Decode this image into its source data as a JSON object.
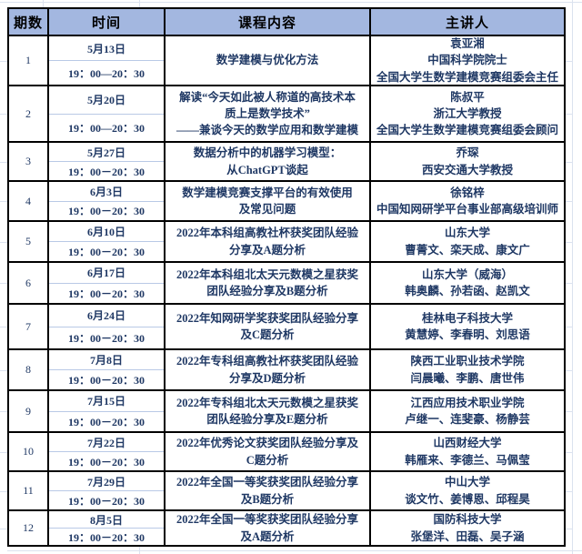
{
  "colors": {
    "header_bg": "#a3b7e0",
    "table_border": "#000000",
    "body_text": "#1f3864",
    "separator_line": "#b9c9e6",
    "sheet_gridline": "#dbe2ef"
  },
  "header": {
    "session": "期数",
    "time": "时间",
    "content": "课程内容",
    "speaker": "主讲人"
  },
  "rows": [
    {
      "num": "1",
      "date": "5月13日",
      "time": "19：00—20：30",
      "content": "数学建模与优化方法",
      "speaker": "袁亚湘\n中国科学院院士\n全国大学生数学建模竞赛组委会主任"
    },
    {
      "num": "2",
      "date": "5月20日",
      "time": "19：00—20：30",
      "content": "解读“今天如此被人称道的高技术本\n质上是数学技术”\n——兼谈今天的数学应用和数学建模",
      "speaker": "陈叔平\n浙江大学教授\n全国大学生数学建模竞赛组委会顾问"
    },
    {
      "num": "3",
      "date": "5月27日",
      "time": "19：00－20：30",
      "content": "数据分析中的机器学习模型：\n从ChatGPT谈起",
      "speaker": "乔琛\n西安交通大学教授"
    },
    {
      "num": "4",
      "date": "6月3日",
      "time": "19：00－20：30",
      "content": "数学建模竞赛支撑平台的有效使用\n及常见问题",
      "speaker": "徐铭梓\n中国知网研学平台事业部高级培训师"
    },
    {
      "num": "5",
      "date": "6月10日",
      "time": "19：00－20：30",
      "content": "2022年本科组高教社杯获奖团队经验\n分享及A题分析",
      "speaker": "山东大学\n曹菁文、栾天成、康文广"
    },
    {
      "num": "6",
      "date": "6月17日",
      "time": "19：00－20：30",
      "content": "2022年本科组北太天元数模之星获奖\n团队经验分享及B题分析",
      "speaker": "山东大学（威海）\n韩奥麟、孙若函、赵凯文"
    },
    {
      "num": "7",
      "date": "6月24日",
      "time": "19：00－20：30",
      "content": "2022年知网研学奖获奖团队经验分享\n及C题分析",
      "speaker": "桂林电子科技大学\n黄慧婷、李春明、刘思语"
    },
    {
      "num": "8",
      "date": "7月8日",
      "time": "19：00－20：30",
      "content": "2022年专科组高教社杯获奖团队经验\n分享及D题分析",
      "speaker": "陕西工业职业技术学院\n闫晨曦、李鹏、唐世伟"
    },
    {
      "num": "9",
      "date": "7月15日",
      "time": "19：00－20：30",
      "content": "2022年专科组北太天元数模之星获奖\n团队经验分享及E题分析",
      "speaker": "江西应用技术职业学院\n卢继一、连斐豪、杨静芸"
    },
    {
      "num": "10",
      "date": "7月22日",
      "time": "19：00－20：30",
      "content": "2022年优秀论文获奖团队经验分享及\nC题分析",
      "speaker": "山西财经大学\n韩雁来、李德兰、马佩莹"
    },
    {
      "num": "11",
      "date": "7月29日",
      "time": "19：00－20：30",
      "content": "2022年全国一等奖获奖团队经验分享\n及B题分析",
      "speaker": "中山大学\n谈文竹、姜博恩、邱程昊"
    },
    {
      "num": "12",
      "date": "8月5日",
      "time": "19：00－20：30",
      "content": "2022年全国一等奖获奖团队经验分享\n及A题分析",
      "speaker": "国防科技大学\n张堡洋、田磊、吴子涵"
    }
  ]
}
